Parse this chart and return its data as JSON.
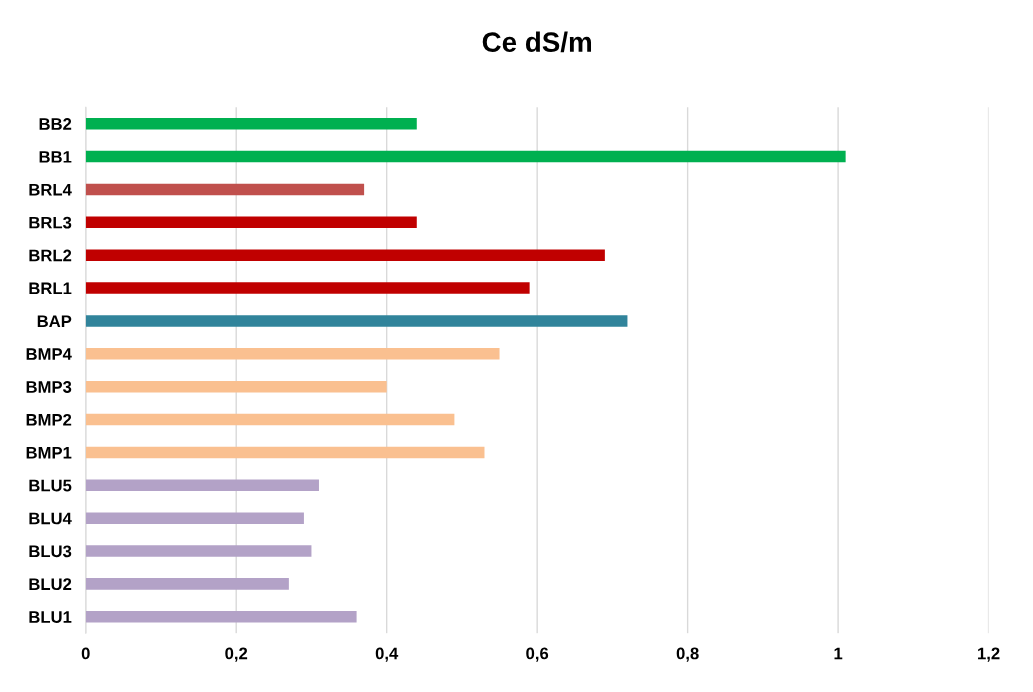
{
  "chart_data": {
    "type": "bar",
    "orientation": "horizontal",
    "title": "Ce dS/m",
    "categories": [
      "BB2",
      "BB1",
      "BRL4",
      "BRL3",
      "BRL2",
      "BRL1",
      "BAP",
      "BMP4",
      "BMP3",
      "BMP2",
      "BMP1",
      "BLU5",
      "BLU4",
      "BLU3",
      "BLU2",
      "BLU1"
    ],
    "values": [
      0.44,
      1.01,
      0.37,
      0.44,
      0.69,
      0.59,
      0.72,
      0.55,
      0.4,
      0.49,
      0.53,
      0.31,
      0.29,
      0.3,
      0.27,
      0.36
    ],
    "colors": [
      "#00b050",
      "#00b050",
      "#c0504d",
      "#c00000",
      "#c00000",
      "#c00000",
      "#31849b",
      "#fac090",
      "#fac090",
      "#fac090",
      "#fac090",
      "#b3a2c7",
      "#b3a2c7",
      "#b3a2c7",
      "#b3a2c7",
      "#b3a2c7"
    ],
    "xlim": [
      0,
      1.2
    ],
    "xticks": [
      {
        "value": 0,
        "label": "0"
      },
      {
        "value": 0.2,
        "label": "0,2"
      },
      {
        "value": 0.4,
        "label": "0,4"
      },
      {
        "value": 0.6,
        "label": "0,6"
      },
      {
        "value": 0.8,
        "label": "0,8"
      },
      {
        "value": 1,
        "label": "1"
      },
      {
        "value": 1.2,
        "label": "1,2"
      }
    ],
    "grid": "x"
  }
}
